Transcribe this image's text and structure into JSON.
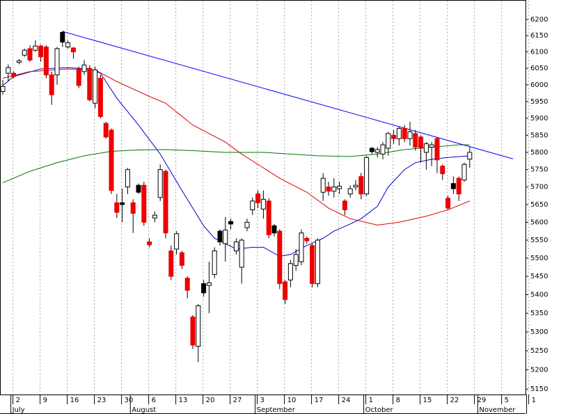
{
  "chart_data": {
    "type": "candlestick",
    "log": true,
    "xgrid": true,
    "ylim": [
      5136,
      6261
    ],
    "yticks": [
      5150,
      5200,
      5250,
      5300,
      5350,
      5400,
      5450,
      5500,
      5550,
      5600,
      5650,
      5700,
      5750,
      5800,
      5850,
      5900,
      5950,
      6000,
      6050,
      6100,
      6150,
      6200
    ],
    "colors": {
      "up": "#ffffff",
      "down": "#ee0000",
      "hold": "#000000"
    },
    "categories": [
      null,
      null,
      "2",
      null,
      null,
      null,
      null,
      "9",
      null,
      null,
      null,
      null,
      "16",
      null,
      null,
      null,
      null,
      "23",
      null,
      null,
      null,
      null,
      "30",
      null,
      null,
      null,
      null,
      "6",
      null,
      null,
      null,
      null,
      "13",
      null,
      null,
      null,
      null,
      "20",
      null,
      null,
      null,
      null,
      "27",
      null,
      null,
      null,
      null,
      "3",
      null,
      null,
      null,
      null,
      "10",
      null,
      null,
      null,
      null,
      "17",
      null,
      null,
      null,
      null,
      "24",
      null,
      null,
      null,
      null,
      "1",
      null,
      null,
      null,
      null,
      "8",
      null,
      null,
      null,
      null,
      "15",
      null,
      null,
      null,
      null,
      "22",
      null,
      null,
      null,
      null,
      "29",
      null,
      null,
      null,
      null,
      "5",
      null,
      null,
      null,
      null,
      "1"
    ],
    "months": [
      null,
      null,
      "July",
      null,
      null,
      null,
      null,
      null,
      null,
      null,
      null,
      null,
      null,
      null,
      null,
      null,
      null,
      null,
      null,
      null,
      null,
      null,
      null,
      null,
      "August",
      null,
      null,
      null,
      null,
      null,
      null,
      null,
      null,
      null,
      null,
      null,
      null,
      null,
      null,
      null,
      null,
      null,
      null,
      null,
      null,
      null,
      null,
      "September",
      null,
      null,
      null,
      null,
      null,
      null,
      null,
      null,
      null,
      null,
      null,
      null,
      null,
      null,
      null,
      null,
      null,
      null,
      null,
      "October",
      null,
      null,
      null,
      null,
      null,
      null,
      null,
      null,
      null,
      null,
      null,
      null,
      null,
      null,
      null,
      null,
      null,
      null,
      null,
      null,
      "November",
      null,
      null,
      null,
      null,
      null,
      null,
      null,
      null
    ],
    "open": [
      5980,
      6035,
      6035,
      6068,
      6090,
      6110,
      6105,
      6118,
      6115,
      6030,
      6030,
      6160,
      6115,
      6112,
      6048,
      6040,
      6050,
      5945,
      6020,
      5885,
      5865,
      5655,
      5655,
      5700,
      5655,
      5705,
      5705,
      5545,
      5612,
      5670,
      5745,
      5520,
      5525,
      5515,
      5445,
      5340,
      5262,
      5430,
      5425,
      5455,
      5575,
      5540,
      5602,
      5520,
      5475,
      5585,
      5635,
      5680,
      5637,
      5660,
      5590,
      5575,
      5435,
      5440,
      5480,
      5490,
      5555,
      5535,
      5430,
      5685,
      5700,
      5688,
      5695,
      5660,
      5680,
      5700,
      5730,
      5680,
      5812,
      5800,
      5795,
      5812,
      5850,
      5840,
      5870,
      5840,
      5855,
      5845,
      5800,
      5815,
      5840,
      5760,
      5668,
      5710,
      5725,
      5720,
      5780,
      null,
      null,
      null,
      null,
      null,
      null,
      null,
      null,
      null,
      null,
      null
    ],
    "high": [
      6015,
      6062,
      6040,
      6078,
      6110,
      6120,
      6135,
      6122,
      6120,
      6040,
      6115,
      6165,
      6135,
      6115,
      6055,
      6075,
      6060,
      6055,
      6030,
      5890,
      5870,
      5680,
      5695,
      5755,
      5665,
      5710,
      5715,
      5555,
      5630,
      5765,
      5750,
      5535,
      5575,
      5520,
      5450,
      5345,
      5375,
      5440,
      5490,
      5530,
      5580,
      5615,
      5610,
      5555,
      5555,
      5610,
      5670,
      5690,
      5690,
      5668,
      5595,
      5580,
      5440,
      5495,
      5525,
      5580,
      5560,
      5540,
      5555,
      5740,
      5715,
      5725,
      5715,
      5665,
      5705,
      5720,
      5740,
      5790,
      5815,
      5815,
      5830,
      5860,
      5865,
      5875,
      5880,
      5890,
      5865,
      5850,
      5830,
      5830,
      5845,
      5765,
      5675,
      5730,
      5730,
      5770,
      5815,
      null,
      null,
      null,
      null,
      null,
      null,
      null,
      null,
      null,
      null,
      null
    ],
    "low": [
      5970,
      6010,
      6020,
      6062,
      6085,
      6070,
      6100,
      6070,
      6020,
      5940,
      6000,
      6115,
      6110,
      6080,
      5990,
      6030,
      5950,
      5930,
      5900,
      5840,
      5680,
      5612,
      5600,
      5680,
      5570,
      5680,
      5590,
      5530,
      5600,
      5660,
      5555,
      5440,
      5510,
      5470,
      5390,
      5255,
      5220,
      5395,
      5350,
      5445,
      5535,
      5490,
      5580,
      5510,
      5430,
      5575,
      5620,
      5640,
      5610,
      5555,
      5560,
      5415,
      5375,
      5420,
      5465,
      5480,
      5540,
      5420,
      5420,
      5660,
      5675,
      5670,
      5680,
      5620,
      5670,
      5690,
      5665,
      5675,
      5795,
      5785,
      5780,
      5790,
      5825,
      5820,
      5830,
      5820,
      5805,
      5770,
      5750,
      5760,
      5740,
      5720,
      5635,
      5680,
      5660,
      5715,
      5755,
      null,
      null,
      null,
      null,
      null,
      null,
      null,
      null,
      null,
      null,
      null
    ],
    "close": [
      5995,
      6052,
      6025,
      6073,
      6105,
      6075,
      6118,
      6085,
      6030,
      5970,
      6110,
      6130,
      6128,
      6100,
      5998,
      6060,
      5955,
      6045,
      5905,
      5845,
      5690,
      5628,
      5650,
      5750,
      5625,
      5685,
      5600,
      5537,
      5620,
      5750,
      5570,
      5450,
      5568,
      5480,
      5412,
      5265,
      5370,
      5405,
      5432,
      5520,
      5545,
      5578,
      5595,
      5545,
      5550,
      5600,
      5660,
      5655,
      5665,
      5565,
      5570,
      5430,
      5387,
      5485,
      5510,
      5570,
      5548,
      5430,
      5550,
      5725,
      5688,
      5700,
      5702,
      5635,
      5695,
      5705,
      5680,
      5785,
      5802,
      5808,
      5822,
      5855,
      5840,
      5870,
      5840,
      5860,
      5815,
      5812,
      5825,
      5822,
      5778,
      5738,
      5640,
      5695,
      5680,
      5765,
      5800,
      null,
      null,
      null,
      null,
      null,
      null,
      null,
      null,
      null,
      null,
      null
    ],
    "series": [
      {
        "color": "#0000cc",
        "x": [
          0,
          2,
          7,
          12,
          16,
          18,
          21,
          25,
          29,
          33,
          37,
          39,
          43,
          46,
          48,
          51,
          53,
          56,
          59,
          61,
          64,
          66,
          69,
          71,
          74,
          76,
          79,
          82,
          86
        ],
        "values": [
          5998,
          6025,
          6048,
          6052,
          6048,
          6035,
          5960,
          5880,
          5795,
          5690,
          5590,
          5555,
          5525,
          5530,
          5530,
          5505,
          5510,
          5535,
          5555,
          5575,
          5595,
          5610,
          5645,
          5700,
          5750,
          5770,
          5780,
          5785,
          5790
        ]
      },
      {
        "color": "#dd0000",
        "x": [
          0,
          5,
          12,
          17,
          21,
          27,
          30,
          35,
          41,
          44,
          48,
          51,
          56,
          60,
          64,
          69,
          73,
          78,
          82,
          86
        ],
        "values": [
          6020,
          6040,
          6048,
          6045,
          6010,
          5965,
          5945,
          5880,
          5830,
          5795,
          5755,
          5725,
          5685,
          5640,
          5610,
          5592,
          5600,
          5617,
          5635,
          5660
        ]
      },
      {
        "color": "#007700",
        "x": [
          0,
          5,
          10,
          15,
          20,
          25,
          30,
          35,
          41,
          48,
          53,
          58,
          64,
          69,
          74,
          79,
          84,
          86
        ],
        "values": [
          5712,
          5745,
          5770,
          5790,
          5803,
          5807,
          5808,
          5805,
          5800,
          5800,
          5795,
          5790,
          5788,
          5795,
          5808,
          5815,
          5822,
          5822
        ]
      },
      {
        "color": "#0000ff",
        "x": [
          11,
          94
        ],
        "values": [
          6163,
          5781
        ]
      }
    ]
  }
}
